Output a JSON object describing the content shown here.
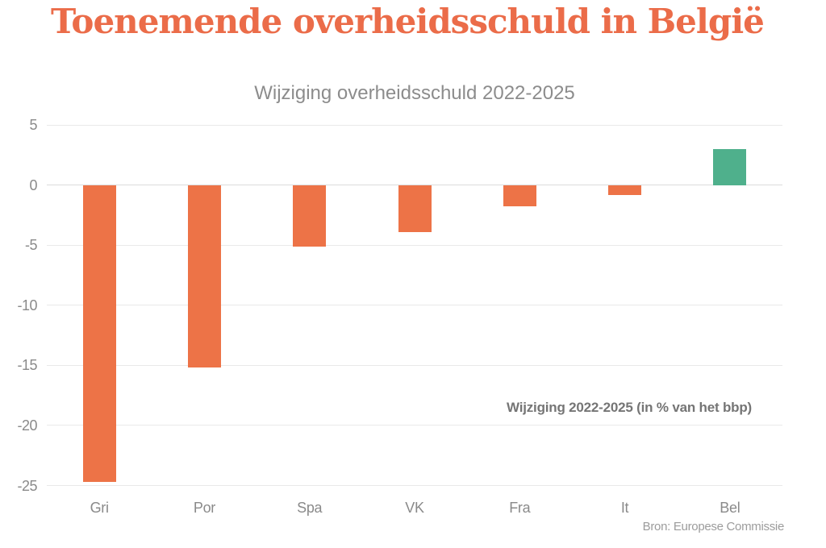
{
  "page_title": "Toenemende overheidsschuld in België",
  "chart_data": {
    "type": "bar",
    "title": "Toenemende overheidsschuld in België",
    "subtitle": "Wijziging overheidsschuld 2022-2025",
    "categories": [
      "Gri",
      "Por",
      "Spa",
      "VK",
      "Fra",
      "It",
      "Bel"
    ],
    "values": [
      -24.7,
      -15.2,
      -5.1,
      -3.9,
      -1.8,
      -0.8,
      3
    ],
    "ylim": [
      -25,
      5
    ],
    "yticks": [
      5,
      0,
      -5,
      -10,
      -15,
      -20,
      -25
    ],
    "grid": true,
    "legend": false,
    "xlabel": "",
    "ylabel": "",
    "annotation": "Wijziging 2022-2025 (in % van het bbp)",
    "source": "Bron: Europese Commissie",
    "colors": {
      "title": "#EB6C49",
      "negative": "#ED7347",
      "positive": "#4FB08C",
      "subtitle": "#8C8C8C",
      "tick": "#8A8A8A",
      "grid": "#E9E9E9",
      "zero_grid": "#DCDCDC",
      "annotation": "#757575",
      "source": "#9C9C9C"
    }
  }
}
